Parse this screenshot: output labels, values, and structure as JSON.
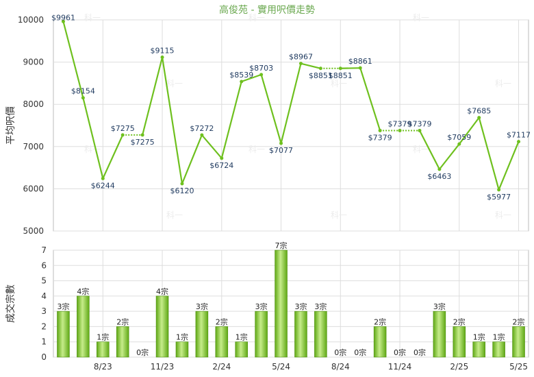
{
  "chart_data": [
    {
      "type": "line",
      "title": "高俊苑 - 實用呎價走勢",
      "ylabel": "平均呎價",
      "ylim": [
        5000,
        10000
      ],
      "yticks": [
        5000,
        6000,
        7000,
        8000,
        9000,
        10000
      ],
      "color": "#6ec01e",
      "values": [
        9961,
        8154,
        6244,
        7275,
        7275,
        9115,
        6120,
        7272,
        6724,
        8539,
        8703,
        7077,
        8967,
        8851,
        8851,
        8861,
        7379,
        7379,
        7379,
        6463,
        7059,
        7685,
        5977,
        7117
      ],
      "labels": [
        "$9961",
        "$8154",
        "$6244",
        "$7275",
        "$7275",
        "$9115",
        "$6120",
        "$7272",
        "$6724",
        "$8539",
        "$8703",
        "$7077",
        "$8967",
        "$8851",
        "$8851",
        "$8861",
        "$7379",
        "$7379",
        "$7379",
        "$6463",
        "$7059",
        "$7685",
        "$5977",
        "$7117"
      ],
      "dotted_segments": [
        [
          3,
          4
        ],
        [
          13,
          14
        ],
        [
          16,
          17
        ],
        [
          17,
          18
        ]
      ]
    },
    {
      "type": "bar",
      "ylabel": "成交宗數",
      "ylim": [
        0,
        7
      ],
      "yticks": [
        0,
        1,
        2,
        3,
        4,
        5,
        6,
        7
      ],
      "color": "#7dc62b",
      "values": [
        3,
        4,
        1,
        2,
        0,
        4,
        1,
        3,
        2,
        1,
        3,
        7,
        3,
        3,
        0,
        0,
        2,
        0,
        0,
        3,
        2,
        1,
        1,
        2
      ],
      "labels": [
        "3宗",
        "4宗",
        "1宗",
        "2宗",
        "0宗",
        "4宗",
        "1宗",
        "3宗",
        "2宗",
        "1宗",
        "3宗",
        "7宗",
        "3宗",
        "3宗",
        "0宗",
        "0宗",
        "2宗",
        "0宗",
        "0宗",
        "3宗",
        "2宗",
        "1宗",
        "1宗",
        "2宗"
      ],
      "xtick_labels": [
        "8/23",
        "11/23",
        "2/24",
        "5/24",
        "8/24",
        "11/24",
        "2/25",
        "5/25"
      ],
      "xtick_indices": [
        2,
        5,
        8,
        11,
        14,
        17,
        20,
        23
      ]
    }
  ],
  "watermark": "科一"
}
